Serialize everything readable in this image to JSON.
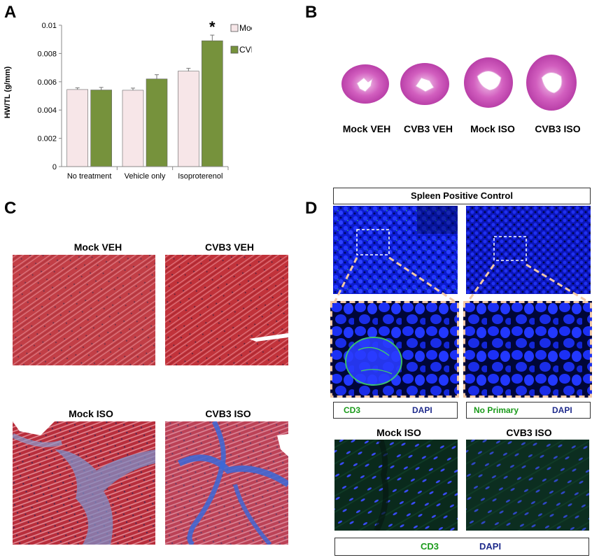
{
  "panels": {
    "a": "A",
    "b": "B",
    "c": "C",
    "d": "D"
  },
  "chart_data": {
    "type": "bar",
    "categories": [
      "No treatment",
      "Vehicle only",
      "Isoproterenol"
    ],
    "series": [
      {
        "name": "Mock",
        "values": [
          0.00545,
          0.0054,
          0.00675
        ],
        "errors": [
          0.00012,
          0.00015,
          0.0002
        ],
        "color": "#f7e6e8"
      },
      {
        "name": "CVB",
        "values": [
          0.00542,
          0.0062,
          0.0089
        ],
        "errors": [
          0.00018,
          0.0003,
          0.0004
        ],
        "color": "#76923c"
      }
    ],
    "ylabel": "HW/TL (g/mm)",
    "xlabel": "",
    "ylim": [
      0,
      0.01
    ],
    "yticks": [
      "0",
      "0.002",
      "0.004",
      "0.006",
      "0.008",
      "0.01"
    ],
    "annotation": "*",
    "legend_position": "top-right",
    "grid": false
  },
  "panel_b": {
    "labels": [
      "Mock VEH",
      "CVB3 VEH",
      "Mock ISO",
      "CVB3 ISO"
    ]
  },
  "panel_c": {
    "labels": [
      "Mock VEH",
      "CVB3 VEH",
      "Mock ISO",
      "CVB3 ISO"
    ]
  },
  "panel_d": {
    "header": "Spleen Positive Control",
    "legend_left": {
      "marker": "CD3",
      "stain": "DAPI"
    },
    "legend_right": {
      "marker": "No Primary",
      "stain": "DAPI"
    },
    "labels": [
      "Mock ISO",
      "CVB3 ISO"
    ],
    "bottom_legend": {
      "marker": "CD3",
      "stain": "DAPI"
    },
    "colors": {
      "marker": "#1a9a1a",
      "stain": "#1f2b8c"
    }
  }
}
